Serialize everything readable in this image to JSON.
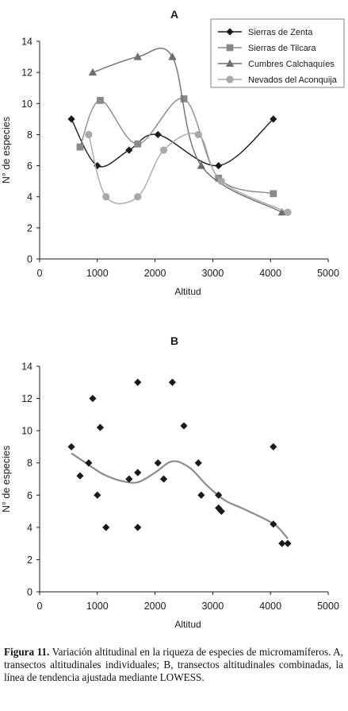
{
  "chart_data": [
    {
      "type": "line",
      "title": "A",
      "xlabel": "Altitud",
      "ylabel": "N° de especies",
      "xlim": [
        0,
        5000
      ],
      "ylim": [
        0,
        14
      ],
      "xticks": [
        0,
        1000,
        2000,
        3000,
        4000,
        5000
      ],
      "yticks": [
        0,
        2,
        4,
        6,
        8,
        10,
        12,
        14
      ],
      "grid": false,
      "legend_position": "top-right",
      "series": [
        {
          "name": "Sierras de Zenta",
          "marker": "diamond",
          "color": "#1a1a1a",
          "x": [
            550,
            1000,
            1550,
            2050,
            3100,
            4050
          ],
          "y": [
            9,
            6,
            7,
            8,
            6,
            9
          ]
        },
        {
          "name": "Sierras de Tilcara",
          "marker": "square",
          "color": "#8a8a8a",
          "x": [
            700,
            1050,
            1700,
            2500,
            3100,
            4050
          ],
          "y": [
            7.2,
            10.2,
            7.4,
            10.3,
            5.2,
            4.2
          ]
        },
        {
          "name": "Cumbres Calchaquíes",
          "marker": "triangle",
          "color": "#6e6e6e",
          "x": [
            920,
            1700,
            2300,
            2800,
            4200
          ],
          "y": [
            12,
            13,
            13,
            6,
            3
          ]
        },
        {
          "name": "Nevados del Aconquija",
          "marker": "circle",
          "color": "#a8a8a8",
          "x": [
            850,
            1150,
            1700,
            2150,
            2750,
            3150,
            4300
          ],
          "y": [
            8,
            4,
            4,
            7,
            8,
            5,
            3
          ]
        }
      ]
    },
    {
      "type": "scatter",
      "title": "B",
      "xlabel": "Altitud",
      "ylabel": "N° de especies",
      "xlim": [
        0,
        5000
      ],
      "ylim": [
        0,
        14
      ],
      "xticks": [
        0,
        1000,
        2000,
        3000,
        4000,
        5000
      ],
      "yticks": [
        0,
        2,
        4,
        6,
        8,
        10,
        12,
        14
      ],
      "grid": false,
      "series": [
        {
          "marker": "diamond",
          "color": "#1a1a1a",
          "x": [
            550,
            700,
            850,
            920,
            1000,
            1050,
            1150,
            1550,
            1700,
            1700,
            1700,
            2050,
            2150,
            2300,
            2500,
            2750,
            2800,
            3100,
            3100,
            3150,
            4050,
            4050,
            4200,
            4300
          ],
          "y": [
            9,
            7.2,
            8,
            12,
            6,
            10.2,
            4,
            7,
            13,
            7.4,
            4,
            8,
            7,
            13,
            10.3,
            8,
            6,
            6,
            5.2,
            5,
            9,
            4.2,
            3,
            3
          ]
        }
      ],
      "trend": {
        "method": "LOWESS",
        "color": "#8c8c8c",
        "x": [
          550,
          800,
          1100,
          1400,
          1700,
          2000,
          2300,
          2600,
          2900,
          3200,
          3500,
          3800,
          4100,
          4300
        ],
        "y": [
          8.6,
          8.0,
          7.3,
          6.9,
          6.8,
          7.4,
          8.1,
          7.7,
          6.6,
          5.7,
          5.2,
          4.7,
          4.1,
          3.3
        ]
      }
    }
  ],
  "caption": {
    "label": "Figura 11.",
    "text": " Variación altitudinal en la riqueza de especies de micromamíferos. A, transectos altitudinales individuales; B, transectos altitudinales combinadas, la línea de tendencia ajustada mediante LOWESS."
  }
}
